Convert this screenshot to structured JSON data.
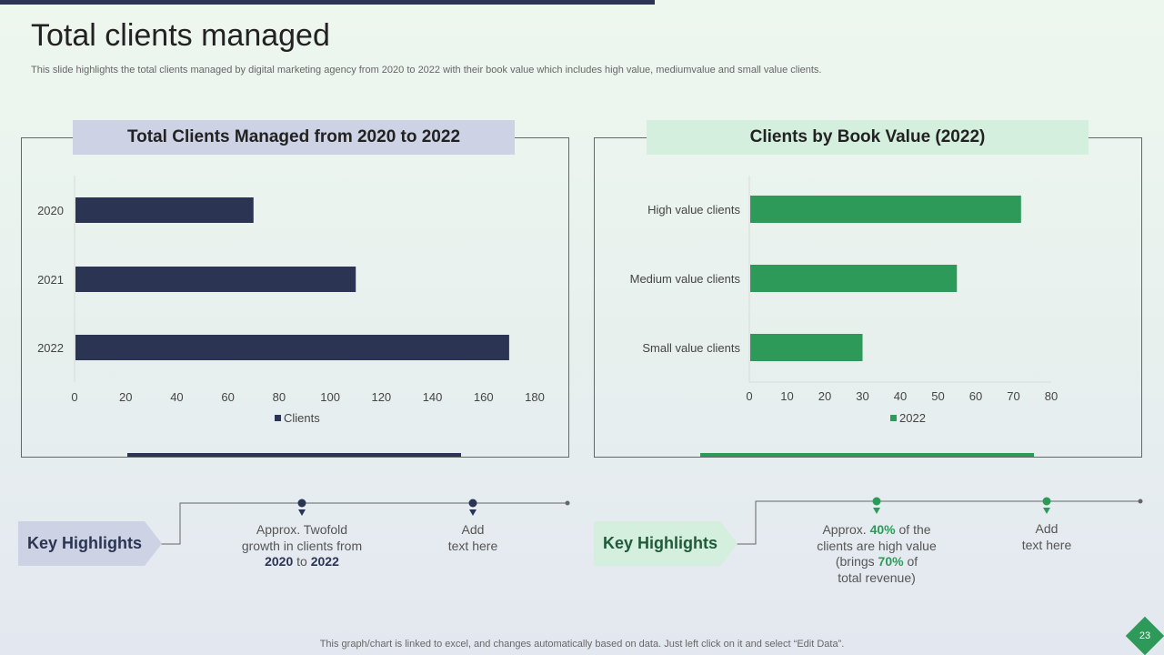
{
  "title": "Total clients managed",
  "subtitle": "This slide highlights the total clients managed by digital marketing agency from 2020 to 2022 with their book value which includes high value, mediumvalue and small value clients.",
  "left_panel_title": "Total Clients Managed from 2020 to 2022",
  "right_panel_title": "Clients by Book Value (2022)",
  "chart_data": [
    {
      "type": "bar",
      "orientation": "horizontal",
      "title": "Total Clients Managed from 2020 to 2022",
      "categories": [
        "2020",
        "2021",
        "2022"
      ],
      "series": [
        {
          "name": "Clients",
          "values": [
            70,
            110,
            170
          ]
        }
      ],
      "xlim": [
        0,
        180
      ],
      "xticks": [
        0,
        20,
        40,
        60,
        80,
        100,
        120,
        140,
        160,
        180
      ],
      "color": "#2b3453",
      "legend": "bottom"
    },
    {
      "type": "bar",
      "orientation": "horizontal",
      "title": "Clients by Book Value (2022)",
      "categories": [
        "High value clients",
        "Medium value clients",
        "Small value clients"
      ],
      "series": [
        {
          "name": "2022",
          "values": [
            72,
            55,
            30
          ]
        }
      ],
      "xlim": [
        0,
        80
      ],
      "xticks": [
        0,
        10,
        20,
        30,
        40,
        50,
        60,
        70,
        80
      ],
      "color": "#2e9a5a",
      "legend": "bottom"
    }
  ],
  "highlights": {
    "left": {
      "label": "Key Highlights",
      "item1": {
        "line1": "Approx. Twofold",
        "line2": "growth in clients from",
        "from": "2020",
        "to_word": "to",
        "to": "2022"
      },
      "item2": {
        "line1": "Add",
        "line2": "text here"
      },
      "color": "#2b3453"
    },
    "right": {
      "label": "Key Highlights",
      "item1": {
        "p1": "Approx. ",
        "pct1": "40%",
        "p2": " of the",
        "line2": "clients are high value",
        "p3": "(brings ",
        "pct2": "70%",
        "p4": " of",
        "line4": "total revenue)"
      },
      "item2": {
        "line1": "Add",
        "line2": "text here"
      },
      "color": "#2e9a5a"
    }
  },
  "footer": "This graph/chart is linked to excel,  and changes automatically based on data. Just left click on it and select “Edit Data”.",
  "page_number": "23"
}
